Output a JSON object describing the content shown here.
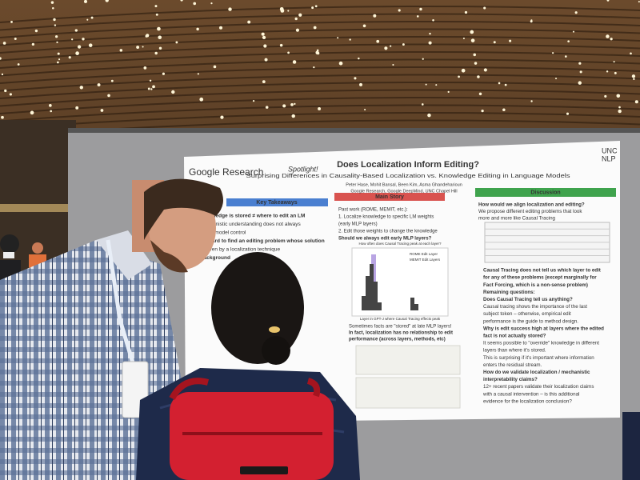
{
  "poster": {
    "logos": {
      "google": "Google Research",
      "spotlight": "Spotlight!",
      "unc": "UNC",
      "nlp": "NLP"
    },
    "title": "Does Localization Inform Editing?",
    "subtitle": "Surprising Differences in Causality-Based Localization vs. Knowledge Editing in Language Models",
    "authors": "Peter Hase, Mohit Bansal, Been Kim, Asma Ghandeharioun",
    "affiliations": "Google Research, Google DeepMind, UNC Chapel Hill",
    "key_takeaways": {
      "heading": "Key Takeaways",
      "lines": [
        "Knowledge is stored ≠ where to edit an LM",
        "Mechanistic understanding does not always",
        "better model control",
        "It's hard to find an editing problem whose solution",
        "is given by a localization technique",
        "Background"
      ]
    },
    "main_story": {
      "heading": "Main Story",
      "lines": [
        "Past work (ROME, MEMIT, etc.):",
        "1. Localize knowledge to specific LM weights",
        "(early MLP layers)",
        "2. Edit those weights to change the knowledge",
        "Should we always edit early MLP layers?"
      ],
      "chart": {
        "title": "How often does Causal Tracing peak at each layer?",
        "legend": [
          "ROME Edit Layer",
          "MEMIT Edit Layers"
        ],
        "xlabel": "Layer in GPT-J where Causal Tracing effects peak"
      },
      "lines2": [
        "Sometimes facts are \"stored\" at late MLP layers!",
        "In fact, localization has no relationship to edit",
        "performance (across layers, methods, etc)"
      ]
    },
    "discussion": {
      "heading": "Discussion",
      "intro": [
        "How would we align localization and editing?",
        "We propose different editing problems that look",
        "more and more like Causal Tracing"
      ],
      "lines": [
        "Causal Tracing does not tell us which layer to edit",
        "for any of these problems (except marginally for",
        "Fact Forcing, which is a non-sense problem)",
        "Remaining questions:",
        "Does Causal Tracing tell us anything?",
        "Causal tracing shows the importance of the last",
        "subject token – otherwise, empirical edit",
        "performance is the guide to method design.",
        "Why is edit success high at layers where the edited",
        "fact is not actually stored?",
        "It seems possible to \"override\" knowledge in different",
        "layers than where it's stored.",
        "This is surprising if it's important where information",
        "enters the residual stream.",
        "How do we validate localization / mechanistic",
        "interpretability claims?",
        "12+ recent papers validate their localization claims",
        "with a causal intervention – is this additional",
        "evidence for the localization conclusion?"
      ]
    }
  }
}
